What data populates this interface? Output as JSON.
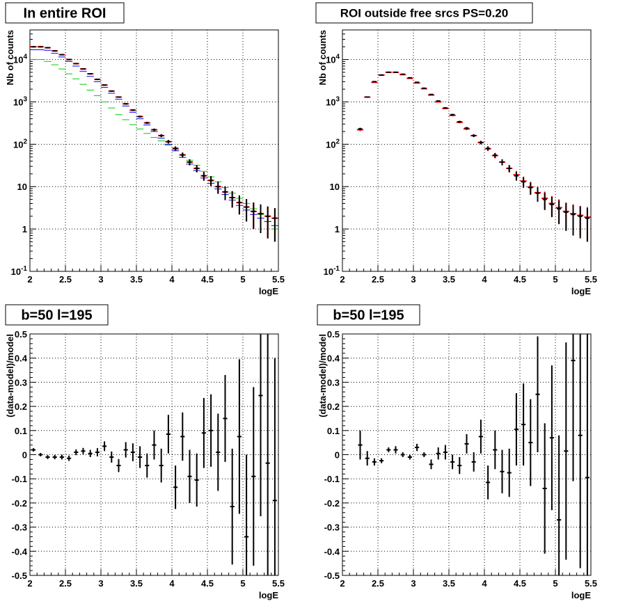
{
  "colors": {
    "data": "#000000",
    "model_total": "#ff0000",
    "model_blue": "#0000ff",
    "model_green": "#00cc00",
    "grid": "#000000",
    "frame": "#000000"
  },
  "chart_data": [
    {
      "type": "scatter",
      "title": "In entire ROI",
      "xlabel": "logE",
      "ylabel": "Nb of counts",
      "xlim": [
        2,
        5.5
      ],
      "ylim": [
        0.1,
        50000
      ],
      "yscale": "log",
      "grid": true,
      "xticks": [
        "2",
        "2.5",
        "3",
        "3.5",
        "4",
        "4.5",
        "5",
        "5.5"
      ],
      "yticks": [
        "10^-1",
        "1",
        "10",
        "10^2",
        "10^3",
        "10^4"
      ],
      "x": [
        2.05,
        2.15,
        2.25,
        2.35,
        2.45,
        2.55,
        2.65,
        2.75,
        2.85,
        2.95,
        3.05,
        3.15,
        3.25,
        3.35,
        3.45,
        3.55,
        3.65,
        3.75,
        3.85,
        3.95,
        4.05,
        4.15,
        4.25,
        4.35,
        4.45,
        4.55,
        4.65,
        4.75,
        4.85,
        4.95,
        5.05,
        5.15,
        5.25,
        5.35,
        5.45
      ],
      "series": [
        {
          "style": "data",
          "color": "#000000",
          "y": [
            20000,
            20000,
            19000,
            16000,
            13000,
            10000,
            8000,
            6000,
            4600,
            3400,
            2500,
            1800,
            1300,
            900,
            640,
            450,
            320,
            220,
            160,
            115,
            80,
            56,
            38,
            27,
            18,
            14,
            10,
            7.5,
            5.5,
            4.2,
            3.3,
            2.6,
            2.3,
            2.0,
            1.8
          ],
          "err": [
            140,
            140,
            135,
            125,
            115,
            100,
            90,
            78,
            68,
            58,
            50,
            42,
            36,
            30,
            25,
            21,
            18,
            15,
            12.6,
            10.7,
            9,
            7.5,
            6.2,
            5.2,
            4.2,
            3.7,
            3.2,
            2.7,
            2.3,
            2.0,
            1.8,
            1.6,
            1.5,
            1.4,
            1.3
          ]
        },
        {
          "style": "model",
          "color": "#ff0000",
          "y": [
            20000,
            20000,
            19000,
            16000,
            13000,
            10000,
            8000,
            6000,
            4600,
            3400,
            2500,
            1800,
            1300,
            900,
            640,
            450,
            320,
            220,
            160,
            115,
            80,
            56,
            38,
            27,
            18,
            14,
            10,
            7.5,
            5.5,
            4.2,
            3.3,
            2.6,
            2.3,
            2.0,
            1.8
          ],
          "err": [
            140,
            140,
            135,
            125,
            115,
            100,
            90,
            78,
            68,
            58,
            50,
            42,
            36,
            30,
            25,
            21,
            18,
            15,
            12.6,
            10.7,
            9,
            7.5,
            6.2,
            5.2,
            4.2,
            3.7,
            3.2,
            2.7,
            2.3,
            2.0,
            1.8,
            1.6,
            1.5,
            1.4,
            1.3
          ]
        },
        {
          "style": "model",
          "color": "#0000ff",
          "y": [
            17000,
            17000,
            16500,
            14000,
            11500,
            9000,
            7000,
            5300,
            4000,
            3000,
            2200,
            1600,
            1150,
            800,
            570,
            400,
            285,
            200,
            140,
            100,
            70,
            49,
            34,
            24,
            16,
            12,
            8.8,
            6.5,
            4.8,
            3.6,
            2.8,
            2.2,
            1.8,
            1.5,
            1.2
          ],
          "err": [
            0,
            0,
            0,
            0,
            0,
            0,
            0,
            0,
            0,
            0,
            0,
            0,
            0,
            0,
            0,
            0,
            0,
            0,
            0,
            0,
            0,
            0,
            0,
            0,
            0,
            0,
            0,
            0,
            0,
            0,
            0,
            0,
            0,
            0,
            0
          ]
        },
        {
          "style": "model",
          "color": "#00cc00",
          "y": [
            10000,
            10000,
            9000,
            7500,
            6000,
            4600,
            3500,
            2600,
            1900,
            1400,
            1000,
            720,
            500,
            380,
            290,
            230,
            180,
            145,
            120,
            95,
            75,
            56,
            42,
            32,
            23,
            17,
            13,
            9.5,
            7,
            5.3,
            4,
            3,
            2.2,
            1.5,
            1
          ],
          "err": [
            0,
            0,
            0,
            0,
            0,
            0,
            0,
            0,
            0,
            0,
            0,
            0,
            0,
            0,
            0,
            0,
            0,
            0,
            0,
            0,
            0,
            0,
            0,
            0,
            0,
            0,
            0,
            0,
            0,
            0,
            0,
            0,
            0,
            0,
            0
          ]
        }
      ]
    },
    {
      "type": "scatter",
      "title": "ROI outside free srcs PS=0.20",
      "xlabel": "logE",
      "ylabel": "Nb of counts",
      "xlim": [
        2,
        5.5
      ],
      "ylim": [
        0.1,
        50000
      ],
      "yscale": "log",
      "grid": true,
      "xticks": [
        "2",
        "2.5",
        "3",
        "3.5",
        "4",
        "4.5",
        "5",
        "5.5"
      ],
      "yticks": [
        "10^-1",
        "1",
        "10",
        "10^2",
        "10^3",
        "10^4"
      ],
      "x": [
        2.25,
        2.35,
        2.45,
        2.55,
        2.65,
        2.75,
        2.85,
        2.95,
        3.05,
        3.15,
        3.25,
        3.35,
        3.45,
        3.55,
        3.65,
        3.75,
        3.85,
        3.95,
        4.05,
        4.15,
        4.25,
        4.35,
        4.45,
        4.55,
        4.65,
        4.75,
        4.85,
        4.95,
        5.05,
        5.15,
        5.25,
        5.35,
        5.45
      ],
      "series": [
        {
          "style": "data",
          "color": "#000000",
          "y": [
            230,
            1300,
            3000,
            4300,
            5000,
            5000,
            4500,
            3700,
            2900,
            2100,
            1500,
            1050,
            720,
            500,
            340,
            240,
            160,
            110,
            80,
            55,
            38,
            27,
            18,
            13,
            9.5,
            7,
            5,
            3.8,
            3,
            2.5,
            2.2,
            2,
            1.8
          ],
          "err": [
            15,
            36,
            55,
            66,
            71,
            71,
            67,
            61,
            54,
            46,
            39,
            32,
            27,
            22,
            18,
            15.5,
            12.6,
            10.5,
            9,
            7.4,
            6.2,
            5.2,
            4.2,
            3.6,
            3.1,
            2.6,
            2.2,
            1.9,
            1.7,
            1.6,
            1.5,
            1.4,
            1.3
          ]
        },
        {
          "style": "model",
          "color": "#ff0000",
          "y": [
            220,
            1300,
            2900,
            4300,
            5000,
            5000,
            4400,
            3600,
            2800,
            2050,
            1450,
            1000,
            700,
            480,
            330,
            230,
            160,
            110,
            78,
            54,
            38,
            27,
            19,
            13.5,
            9.8,
            7.2,
            5.3,
            4,
            3.2,
            2.6,
            2.3,
            2.1,
            1.9
          ],
          "err": [
            15,
            36,
            54,
            66,
            71,
            71,
            66,
            60,
            53,
            45,
            38,
            32,
            26,
            22,
            18,
            15,
            12.6,
            10.5,
            8.8,
            7.3,
            6.2,
            5.2,
            4.4,
            3.7,
            3.1,
            2.7,
            2.3,
            2.0,
            1.8,
            1.6,
            1.5,
            1.4,
            1.4
          ]
        }
      ]
    },
    {
      "type": "scatter",
      "title": "b=50 l=195",
      "xlabel": "logE",
      "ylabel": "(data-model)/model",
      "xlim": [
        2,
        5.5
      ],
      "ylim": [
        -0.5,
        0.5
      ],
      "yscale": "linear",
      "grid": true,
      "xticks": [
        "2",
        "2.5",
        "3",
        "3.5",
        "4",
        "4.5",
        "5",
        "5.5"
      ],
      "yticks": [
        "-0.5",
        "-0.4",
        "-0.3",
        "-0.2",
        "-0.1",
        "0",
        "0.1",
        "0.2",
        "0.3",
        "0.4",
        "0.5"
      ],
      "x": [
        2.05,
        2.15,
        2.25,
        2.35,
        2.45,
        2.55,
        2.65,
        2.75,
        2.85,
        2.95,
        3.05,
        3.15,
        3.25,
        3.35,
        3.45,
        3.55,
        3.65,
        3.75,
        3.85,
        3.95,
        4.05,
        4.15,
        4.25,
        4.35,
        4.45,
        4.55,
        4.65,
        4.75,
        4.85,
        4.95,
        5.05,
        5.15,
        5.25,
        5.35,
        5.45
      ],
      "series": [
        {
          "style": "data",
          "color": "#000000",
          "y": [
            0.02,
            0,
            -0.01,
            -0.01,
            -0.01,
            -0.015,
            0.01,
            0.015,
            0.005,
            0.01,
            0.035,
            -0.01,
            -0.045,
            0.02,
            0.01,
            -0.01,
            -0.045,
            0.04,
            -0.045,
            0.085,
            -0.135,
            0.075,
            -0.09,
            -0.105,
            0.09,
            0.1,
            0.01,
            0.15,
            -0.215,
            0.075,
            -0.34,
            -0.09,
            0.245,
            -0.035,
            -0.19
          ],
          "err": [
            0.007,
            0.007,
            0.008,
            0.009,
            0.01,
            0.011,
            0.012,
            0.013,
            0.015,
            0.017,
            0.02,
            0.023,
            0.027,
            0.032,
            0.037,
            0.045,
            0.05,
            0.06,
            0.07,
            0.08,
            0.09,
            0.1,
            0.11,
            0.11,
            0.145,
            0.15,
            0.16,
            0.18,
            0.24,
            0.32,
            0.34,
            0.37,
            0.5,
            0.55,
            0.59
          ]
        }
      ]
    },
    {
      "type": "scatter",
      "title": "b=50 l=195",
      "xlabel": "logE",
      "ylabel": "(data-model)/model",
      "xlim": [
        2,
        5.5
      ],
      "ylim": [
        -0.5,
        0.5
      ],
      "yscale": "linear",
      "grid": true,
      "xticks": [
        "2",
        "2.5",
        "3",
        "3.5",
        "4",
        "4.5",
        "5",
        "5.5"
      ],
      "yticks": [
        "-0.5",
        "-0.4",
        "-0.3",
        "-0.2",
        "-0.1",
        "0",
        "0.1",
        "0.2",
        "0.3",
        "0.4",
        "0.5"
      ],
      "x": [
        2.25,
        2.35,
        2.45,
        2.55,
        2.65,
        2.75,
        2.85,
        2.95,
        3.05,
        3.15,
        3.25,
        3.35,
        3.45,
        3.55,
        3.65,
        3.75,
        3.85,
        3.95,
        4.05,
        4.15,
        4.25,
        4.35,
        4.45,
        4.55,
        4.65,
        4.75,
        4.85,
        4.95,
        5.05,
        5.15,
        5.25,
        5.35,
        5.45
      ],
      "series": [
        {
          "style": "data",
          "color": "#000000",
          "y": [
            0.04,
            -0.015,
            -0.03,
            -0.025,
            0.02,
            0.02,
            0,
            -0.01,
            0.03,
            0,
            -0.04,
            0.005,
            0.01,
            -0.03,
            -0.045,
            0.045,
            -0.03,
            0.075,
            -0.115,
            0.02,
            -0.07,
            -0.075,
            0.105,
            0.125,
            0.05,
            0.25,
            -0.14,
            0.07,
            -0.27,
            0.015,
            0.39,
            0.08,
            -0.095
          ],
          "err": [
            0.06,
            0.03,
            0.015,
            0.01,
            0.01,
            0.015,
            0.01,
            0.01,
            0.015,
            0.01,
            0.02,
            0.025,
            0.03,
            0.03,
            0.035,
            0.04,
            0.04,
            0.07,
            0.07,
            0.08,
            0.09,
            0.1,
            0.15,
            0.17,
            0.18,
            0.24,
            0.27,
            0.3,
            0.35,
            0.45,
            0.5,
            0.55,
            0.6
          ]
        }
      ]
    }
  ]
}
